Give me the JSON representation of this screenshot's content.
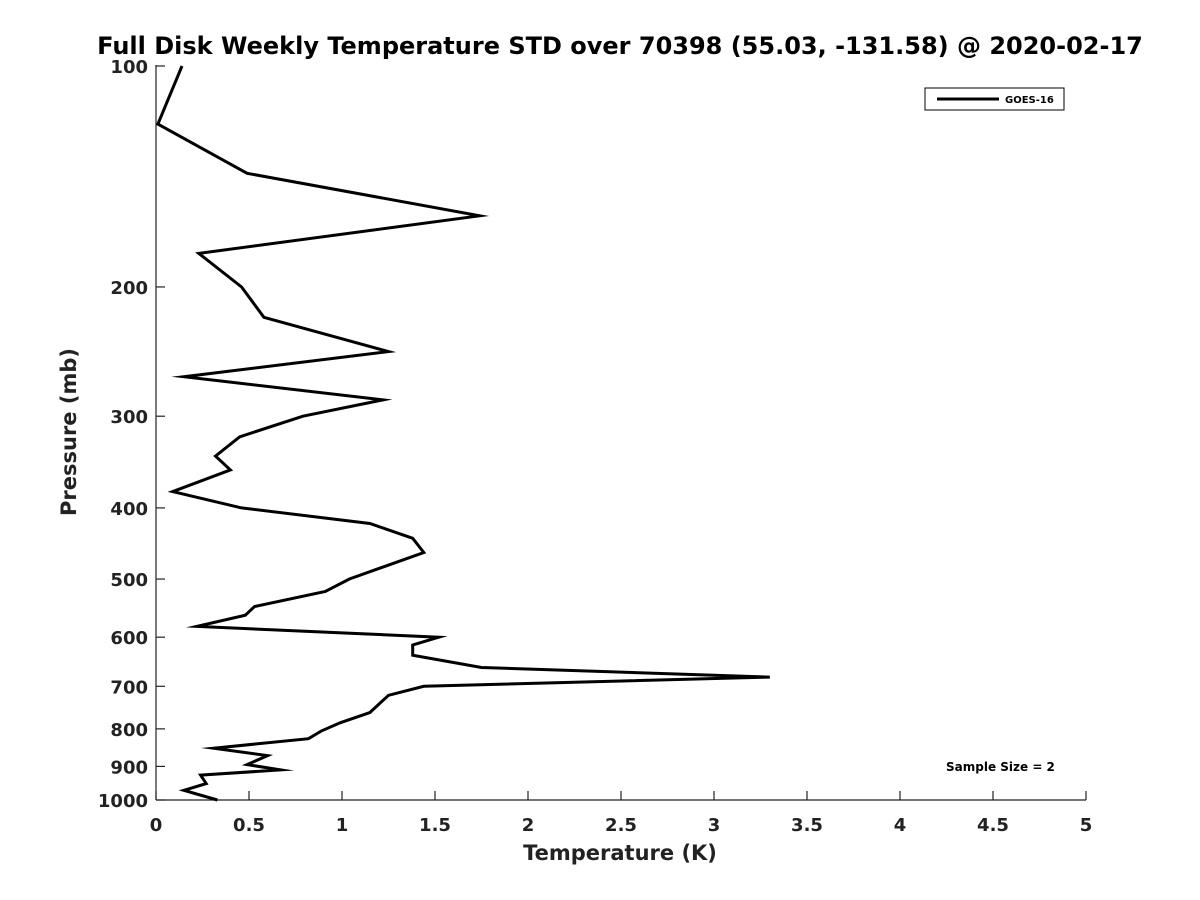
{
  "chart_data": {
    "type": "line",
    "title": "Full Disk Weekly Temperature STD over 70398 (55.03, -131.58) @ 2020-02-17",
    "xlabel": "Temperature (K)",
    "ylabel": "Pressure (mb)",
    "xlim": [
      0,
      5
    ],
    "ylim": [
      100,
      1000
    ],
    "yscale": "log",
    "reversed_y": true,
    "grid": false,
    "xticks": [
      0,
      0.5,
      1,
      1.5,
      2,
      2.5,
      3,
      3.5,
      4,
      4.5,
      5
    ],
    "xtick_labels": [
      "0",
      "0.5",
      "1",
      "1.5",
      "2",
      "2.5",
      "3",
      "3.5",
      "4",
      "4.5",
      "5"
    ],
    "yticks": [
      100,
      200,
      300,
      400,
      500,
      600,
      700,
      800,
      900,
      1000
    ],
    "ytick_labels": [
      "100",
      "200",
      "300",
      "400",
      "500",
      "600",
      "700",
      "800",
      "900",
      "1000"
    ],
    "legend": {
      "location": "top-right",
      "entries": [
        "GOES-16"
      ]
    },
    "annotation": "Sample Size = 2",
    "series": [
      {
        "name": "GOES-16",
        "color": "#000000",
        "points": [
          [
            0.14,
            100
          ],
          [
            0.01,
            120
          ],
          [
            0.49,
            140
          ],
          [
            1.74,
            160
          ],
          [
            0.23,
            180
          ],
          [
            0.46,
            200
          ],
          [
            0.58,
            220
          ],
          [
            1.25,
            245
          ],
          [
            0.15,
            265
          ],
          [
            1.22,
            285
          ],
          [
            0.79,
            300
          ],
          [
            0.45,
            320
          ],
          [
            0.32,
            340
          ],
          [
            0.4,
            355
          ],
          [
            0.09,
            380
          ],
          [
            0.46,
            400
          ],
          [
            1.15,
            420
          ],
          [
            1.38,
            440
          ],
          [
            1.44,
            460
          ],
          [
            1.04,
            500
          ],
          [
            0.91,
            520
          ],
          [
            0.53,
            545
          ],
          [
            0.48,
            560
          ],
          [
            0.22,
            580
          ],
          [
            1.52,
            600
          ],
          [
            1.38,
            615
          ],
          [
            1.38,
            635
          ],
          [
            1.75,
            660
          ],
          [
            3.3,
            680
          ],
          [
            1.44,
            700
          ],
          [
            1.25,
            720
          ],
          [
            1.15,
            760
          ],
          [
            0.99,
            785
          ],
          [
            0.89,
            805
          ],
          [
            0.82,
            825
          ],
          [
            0.31,
            850
          ],
          [
            0.6,
            870
          ],
          [
            0.49,
            895
          ],
          [
            0.67,
            910
          ],
          [
            0.24,
            925
          ],
          [
            0.27,
            950
          ],
          [
            0.15,
            970
          ],
          [
            0.33,
            1000
          ]
        ]
      }
    ]
  }
}
